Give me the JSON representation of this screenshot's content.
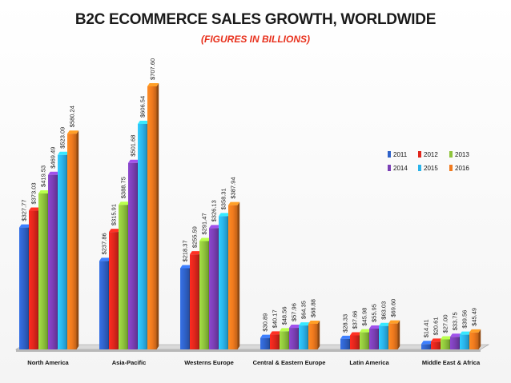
{
  "chart_data": {
    "type": "bar",
    "title": "B2C ECOMMERCE SALES GROWTH, WORLDWIDE",
    "subtitle": "(FIGURES IN BILLIONS)",
    "categories": [
      "North America",
      "Asia-Pacific",
      "Westerns Europe",
      "Central & Eastern Europe",
      "Latin America",
      "Middle East & Africa"
    ],
    "series": [
      {
        "name": "2011",
        "color": "#2f62c9",
        "values": [
          327.77,
          237.86,
          218.37,
          30.89,
          28.33,
          14.41
        ],
        "labels": [
          "$327.77",
          "$237.86",
          "$218.37",
          "$30.89",
          "$28.33",
          "$14.41"
        ]
      },
      {
        "name": "2012",
        "color": "#e0261c",
        "values": [
          373.03,
          315.91,
          255.59,
          40.17,
          37.66,
          20.61
        ],
        "labels": [
          "$373.03",
          "$315.91",
          "$255.59",
          "$40.17",
          "$37.66",
          "$20.61"
        ]
      },
      {
        "name": "2013",
        "color": "#8fc43c",
        "values": [
          419.53,
          388.75,
          291.47,
          48.56,
          45.98,
          27.0
        ],
        "labels": [
          "$419.53",
          "$388.75",
          "$291.47",
          "$48.56",
          "$45.98",
          "$27.00"
        ]
      },
      {
        "name": "2014",
        "color": "#7b3fb5",
        "values": [
          469.49,
          501.68,
          326.13,
          57.96,
          55.95,
          33.75
        ],
        "labels": [
          "$469.49",
          "$501.68",
          "$326.13",
          "$57.96",
          "$55.95",
          "$33.75"
        ]
      },
      {
        "name": "2015",
        "color": "#2ab3ea",
        "values": [
          523.09,
          606.54,
          358.31,
          64.35,
          63.03,
          39.56
        ],
        "labels": [
          "$523.09",
          "$606.54",
          "$358.31",
          "$64.35",
          "$63.03",
          "$39.56"
        ]
      },
      {
        "name": "2016",
        "color": "#f07a1e",
        "values": [
          580.24,
          707.6,
          387.94,
          68.88,
          69.6,
          45.49
        ],
        "labels": [
          "$580.24",
          "$707.60",
          "$387.94",
          "$68.88",
          "$69.60",
          "$45.49"
        ]
      }
    ],
    "ylim": [
      0,
      720
    ],
    "grid": false,
    "legend_position": "right"
  }
}
